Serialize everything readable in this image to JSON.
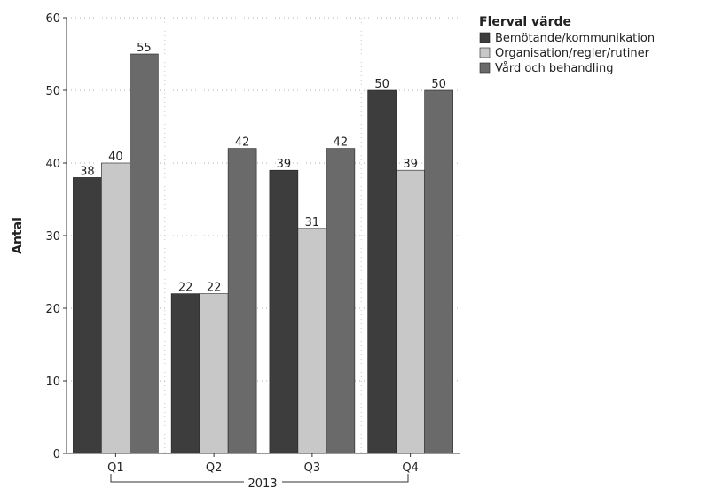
{
  "chart_data": {
    "type": "bar",
    "categories": [
      "Q1",
      "Q2",
      "Q3",
      "Q4"
    ],
    "group_label": "2013",
    "series": [
      {
        "name": "Bemötande/kommunikation",
        "values": [
          38,
          22,
          39,
          50
        ],
        "color": "#3d3d3d"
      },
      {
        "name": "Organisation/regler/rutiner",
        "values": [
          40,
          22,
          31,
          39
        ],
        "color": "#c8c8c8"
      },
      {
        "name": "Vård och behandling",
        "values": [
          55,
          42,
          42,
          50
        ],
        "color": "#6a6a6a"
      }
    ],
    "ylabel": "Antal",
    "ylim": [
      0,
      60
    ],
    "yticks": [
      0,
      10,
      20,
      30,
      40,
      50,
      60
    ],
    "grid": true,
    "legend": {
      "title": "Flerval värde",
      "placement": "top-right"
    }
  }
}
